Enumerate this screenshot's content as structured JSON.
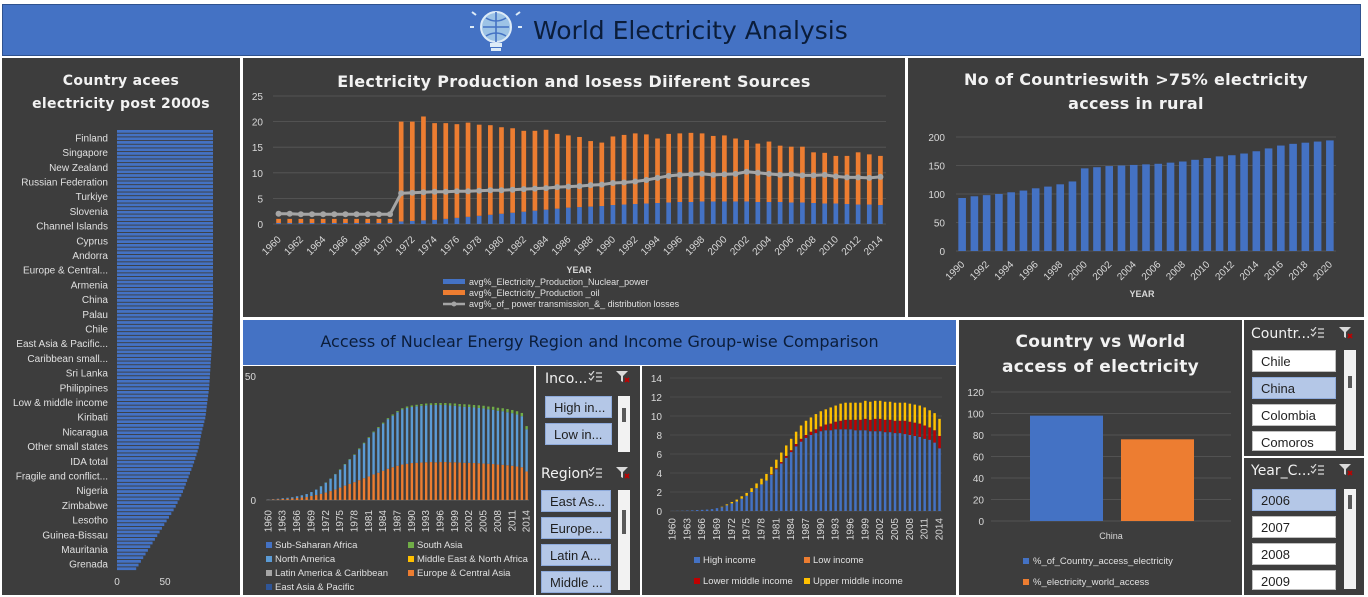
{
  "header": {
    "title": "World Electricity Analysis",
    "logo_icon": "lightbulb-globe-icon"
  },
  "colors": {
    "blue": "#4472c4",
    "orange": "#ed7d31",
    "grey": "#a5a5a5",
    "red": "#c00000",
    "yellow": "#ffc000",
    "green": "#70ad47",
    "panel": "#3d3d3d"
  },
  "panel_country_access": {
    "title_line1": "Country acees",
    "title_line2": "electricity post 2000s"
  },
  "panel_production": {
    "title": "Electricity Production and losess Diiferent Sources",
    "xlabel": "YEAR",
    "legend": [
      "avg%_Electricity_Production_Nuclear_power",
      " avg%_Electricity_Production _oil",
      "avg%_of_ power transmission_&_ distribution losses"
    ]
  },
  "panel_rural": {
    "title_line1": "No of Countrieswith >75% electricity",
    "title_line2": "access in rural",
    "xlabel": "YEAR"
  },
  "panel_nuclear": {
    "title": "Access of Nuclear Energy Region and Income Group-wise Comparison",
    "region_legend": [
      "Sub-Saharan Africa",
      "South Asia",
      "North America",
      "Middle East & North Africa",
      "Latin America & Caribbean",
      "Europe & Central Asia",
      "East Asia & Pacific"
    ],
    "income_legend": [
      "High income",
      "Low income",
      "Lower middle income",
      "Upper middle income"
    ]
  },
  "panel_country_world": {
    "title_line1": "Country vs World",
    "title_line2": "access of electricity",
    "legend": [
      "%_of_Country_access_electricity",
      "%_electricity_world_access"
    ]
  },
  "slicers": {
    "income": {
      "title": "Inco...",
      "items": [
        "High in...",
        "Low in..."
      ]
    },
    "region": {
      "title": "Region",
      "items": [
        "East As...",
        "Europe...",
        "Latin A...",
        "Middle ..."
      ]
    },
    "country": {
      "title": "Countr...",
      "items": [
        "Chile",
        "China",
        "Colombia",
        "Comoros"
      ],
      "selected": "China"
    },
    "year": {
      "title": "Year_C...",
      "items": [
        "2006",
        "2007",
        "2008",
        "2009"
      ],
      "selected": "2006"
    }
  },
  "chart_data": [
    {
      "type": "bar",
      "orientation": "horizontal",
      "title": "Country acees electricity post 2000s",
      "categories": [
        "Finland",
        "Singapore",
        "New Zealand",
        "Russian Federation",
        "Turkiye",
        "Slovenia",
        "Channel Islands",
        "Cyprus",
        "Andorra",
        "Europe & Central...",
        "Armenia",
        "China",
        "Palau",
        "Chile",
        "East Asia & Pacific...",
        "Caribbean small...",
        "Sri Lanka",
        "Philippines",
        "Low & middle income",
        "Kiribati",
        "Nicaragua",
        "Other small states",
        "IDA total",
        "Fragile and conflict...",
        "Nigeria",
        "Zimbabwe",
        "Lesotho",
        "Guinea-Bissau",
        "Mauritania",
        "Grenada"
      ],
      "values": [
        100,
        100,
        100,
        100,
        100,
        100,
        100,
        100,
        100,
        100,
        100,
        100,
        100,
        99,
        99,
        98,
        97,
        96,
        94,
        92,
        88,
        85,
        80,
        74,
        68,
        60,
        50,
        40,
        30,
        20
      ],
      "xticks": [
        "0",
        "50"
      ],
      "xlim": [
        0,
        100
      ]
    },
    {
      "type": "bar",
      "stacked": true,
      "title": "Electricity Production and losess Diiferent Sources",
      "xlabel": "YEAR",
      "xticks": [
        "1960",
        "1962",
        "1964",
        "1966",
        "1968",
        "1970",
        "1972",
        "1974",
        "1976",
        "1978",
        "1980",
        "1982",
        "1984",
        "1986",
        "1988",
        "1990",
        "1992",
        "1994",
        "1996",
        "1998",
        "2000",
        "2002",
        "2004",
        "2006",
        "2008",
        "2010",
        "2012",
        "2014"
      ],
      "ylim": [
        0,
        25
      ],
      "yticks": [
        0,
        5,
        10,
        15,
        20,
        25
      ],
      "x": [
        1960,
        1961,
        1962,
        1963,
        1964,
        1965,
        1966,
        1967,
        1968,
        1969,
        1970,
        1971,
        1972,
        1973,
        1974,
        1975,
        1976,
        1977,
        1978,
        1979,
        1980,
        1981,
        1982,
        1983,
        1984,
        1985,
        1986,
        1987,
        1988,
        1989,
        1990,
        1991,
        1992,
        1993,
        1994,
        1995,
        1996,
        1997,
        1998,
        1999,
        2000,
        2001,
        2002,
        2003,
        2004,
        2005,
        2006,
        2007,
        2008,
        2009,
        2010,
        2011,
        2012,
        2013,
        2014
      ],
      "series": [
        {
          "name": "avg%_Electricity_Production_Nuclear_power",
          "values": [
            0.2,
            0.2,
            0.2,
            0.2,
            0.2,
            0.2,
            0.2,
            0.2,
            0.2,
            0.2,
            0.2,
            0.5,
            0.6,
            0.7,
            0.8,
            1.0,
            1.2,
            1.4,
            1.6,
            1.8,
            2.0,
            2.2,
            2.4,
            2.6,
            2.8,
            3.0,
            3.2,
            3.3,
            3.4,
            3.5,
            3.7,
            3.8,
            3.9,
            4.0,
            4.1,
            4.2,
            4.3,
            4.3,
            4.4,
            4.4,
            4.4,
            4.4,
            4.4,
            4.3,
            4.3,
            4.3,
            4.2,
            4.2,
            4.1,
            4.0,
            4.0,
            3.9,
            3.8,
            3.8,
            3.7
          ]
        },
        {
          "name": " avg%_Electricity_Production _oil",
          "values": [
            0.8,
            0.8,
            0.8,
            0.8,
            0.8,
            0.8,
            0.8,
            0.8,
            0.8,
            0.8,
            0.8,
            19.5,
            19.4,
            20.3,
            18.9,
            18.7,
            18.3,
            18.4,
            17.8,
            17.5,
            16.9,
            16.5,
            15.8,
            15.6,
            15.6,
            14.6,
            14.1,
            13.7,
            12.8,
            12.4,
            13.4,
            13.6,
            13.8,
            13.5,
            12.6,
            13.4,
            13.4,
            13.5,
            13.3,
            12.8,
            12.9,
            12.3,
            12.0,
            11.4,
            11.8,
            11.0,
            10.9,
            10.9,
            9.9,
            9.9,
            9.3,
            9.4,
            10.2,
            9.8,
            9.6
          ]
        },
        {
          "name": "avg%_of_ power transmission_&_ distribution losses",
          "values": [
            2.0,
            2.0,
            1.9,
            1.9,
            1.9,
            1.9,
            1.9,
            1.9,
            1.9,
            1.9,
            1.9,
            6.0,
            6.1,
            6.2,
            6.3,
            6.3,
            6.4,
            6.4,
            6.5,
            6.6,
            6.6,
            6.7,
            6.8,
            6.9,
            7.0,
            7.2,
            7.3,
            7.4,
            7.6,
            7.7,
            8.0,
            8.1,
            8.3,
            8.6,
            9.0,
            9.4,
            9.6,
            9.7,
            9.8,
            9.6,
            9.7,
            9.8,
            10.2,
            10.0,
            9.8,
            9.6,
            9.7,
            9.5,
            9.5,
            9.6,
            9.3,
            9.1,
            9.1,
            9.0,
            9.2
          ]
        }
      ]
    },
    {
      "type": "bar",
      "title": "No of Countrieswith >75% electricity access in rural",
      "xlabel": "YEAR",
      "x": [
        1990,
        1991,
        1992,
        1993,
        1994,
        1995,
        1996,
        1997,
        1998,
        1999,
        2000,
        2001,
        2002,
        2003,
        2004,
        2005,
        2006,
        2007,
        2008,
        2009,
        2010,
        2011,
        2012,
        2013,
        2014,
        2015,
        2016,
        2017,
        2018,
        2019,
        2020
      ],
      "xticks": [
        "1990",
        "1992",
        "1994",
        "1996",
        "1998",
        "2000",
        "2002",
        "2004",
        "2006",
        "2008",
        "2010",
        "2012",
        "2014",
        "2016",
        "2018",
        "2020"
      ],
      "values": [
        93,
        96,
        98,
        100,
        103,
        106,
        110,
        113,
        117,
        122,
        145,
        147,
        149,
        150,
        151,
        152,
        153,
        155,
        157,
        160,
        163,
        166,
        168,
        171,
        175,
        180,
        185,
        188,
        190,
        192,
        194
      ],
      "ylim": [
        0,
        200
      ],
      "yticks": [
        0,
        50,
        100,
        150,
        200
      ]
    },
    {
      "type": "bar",
      "stacked": true,
      "title": "Access of Nuclear Energy Region-wise",
      "xticks": [
        "1960",
        "1963",
        "1966",
        "1969",
        "1972",
        "1975",
        "1978",
        "1981",
        "1984",
        "1987",
        "1990",
        "1993",
        "1996",
        "1999",
        "2002",
        "2005",
        "2008",
        "2011",
        "2014"
      ],
      "yticks": [
        0,
        50
      ],
      "ylim": [
        0,
        50
      ],
      "x": [
        1960,
        1961,
        1962,
        1963,
        1964,
        1965,
        1966,
        1967,
        1968,
        1969,
        1970,
        1971,
        1972,
        1973,
        1974,
        1975,
        1976,
        1977,
        1978,
        1979,
        1980,
        1981,
        1982,
        1983,
        1984,
        1985,
        1986,
        1987,
        1988,
        1989,
        1990,
        1991,
        1992,
        1993,
        1994,
        1995,
        1996,
        1997,
        1998,
        1999,
        2000,
        2001,
        2002,
        2003,
        2004,
        2005,
        2006,
        2007,
        2008,
        2009,
        2010,
        2011,
        2012,
        2013,
        2014
      ],
      "series": [
        {
          "name": "Europe & Central Asia",
          "values": [
            0.1,
            0.2,
            0.3,
            0.4,
            0.5,
            0.6,
            0.8,
            1.0,
            1.2,
            1.6,
            2.0,
            2.5,
            3.0,
            3.6,
            4.2,
            5.0,
            5.8,
            6.5,
            7.2,
            8.0,
            8.8,
            9.5,
            10.3,
            11.0,
            11.8,
            12.6,
            13.2,
            13.8,
            14.3,
            14.6,
            14.9,
            15.0,
            15.1,
            15.2,
            15.3,
            15.2,
            15.3,
            15.3,
            15.2,
            15.2,
            15.1,
            15.0,
            15.0,
            14.9,
            14.8,
            14.7,
            14.6,
            14.5,
            14.3,
            14.2,
            14.0,
            13.8,
            13.5,
            13.2,
            11.5
          ]
        },
        {
          "name": "North America",
          "values": [
            0.1,
            0.1,
            0.2,
            0.3,
            0.4,
            0.5,
            0.7,
            0.9,
            1.2,
            1.6,
            2.2,
            3.0,
            4.0,
            5.0,
            6.2,
            7.2,
            8.5,
            9.8,
            11.0,
            12.5,
            14.0,
            15.5,
            17.0,
            18.0,
            19.0,
            20.0,
            20.8,
            21.6,
            22.2,
            22.5,
            22.6,
            22.8,
            22.9,
            23.0,
            23.0,
            23.1,
            23.0,
            23.0,
            22.9,
            22.8,
            22.7,
            22.6,
            22.5,
            22.4,
            22.3,
            22.2,
            22.0,
            21.9,
            21.7,
            21.6,
            21.4,
            21.2,
            21.0,
            20.6,
            17.0
          ]
        },
        {
          "name": "South Asia",
          "values": [
            0,
            0,
            0,
            0,
            0,
            0,
            0,
            0,
            0,
            0,
            0,
            0.1,
            0.1,
            0.1,
            0.1,
            0.2,
            0.2,
            0.2,
            0.2,
            0.3,
            0.3,
            0.3,
            0.3,
            0.4,
            0.4,
            0.4,
            0.5,
            0.5,
            0.5,
            0.6,
            0.6,
            0.6,
            0.7,
            0.7,
            0.7,
            0.8,
            0.8,
            0.8,
            0.9,
            0.9,
            0.9,
            1.0,
            1.0,
            1.0,
            1.1,
            1.1,
            1.1,
            1.2,
            1.2,
            1.2,
            1.3,
            1.3,
            1.3,
            1.3,
            1.3
          ]
        }
      ]
    },
    {
      "type": "bar",
      "stacked": true,
      "title": "Access of Nuclear Energy Income Group-wise",
      "xticks": [
        "1960",
        "1963",
        "1966",
        "1969",
        "1972",
        "1975",
        "1978",
        "1981",
        "1984",
        "1987",
        "1990",
        "1993",
        "1996",
        "1999",
        "2002",
        "2005",
        "2008",
        "2011",
        "2014"
      ],
      "yticks": [
        0,
        2,
        4,
        6,
        8,
        10,
        12,
        14
      ],
      "ylim": [
        0,
        14
      ],
      "x": [
        1960,
        1961,
        1962,
        1963,
        1964,
        1965,
        1966,
        1967,
        1968,
        1969,
        1970,
        1971,
        1972,
        1973,
        1974,
        1975,
        1976,
        1977,
        1978,
        1979,
        1980,
        1981,
        1982,
        1983,
        1984,
        1985,
        1986,
        1987,
        1988,
        1989,
        1990,
        1991,
        1992,
        1993,
        1994,
        1995,
        1996,
        1997,
        1998,
        1999,
        2000,
        2001,
        2002,
        2003,
        2004,
        2005,
        2006,
        2007,
        2008,
        2009,
        2010,
        2011,
        2012,
        2013,
        2014
      ],
      "series": [
        {
          "name": "High income",
          "values": [
            0.01,
            0.02,
            0.03,
            0.05,
            0.07,
            0.1,
            0.12,
            0.15,
            0.2,
            0.3,
            0.4,
            0.6,
            0.8,
            1.0,
            1.3,
            1.6,
            2.0,
            2.4,
            2.8,
            3.2,
            3.8,
            4.4,
            5.0,
            5.6,
            6.2,
            6.8,
            7.3,
            7.7,
            8.0,
            8.2,
            8.4,
            8.5,
            8.5,
            8.6,
            8.6,
            8.6,
            8.6,
            8.5,
            8.5,
            8.5,
            8.4,
            8.4,
            8.4,
            8.3,
            8.3,
            8.2,
            8.2,
            8.1,
            8.0,
            7.9,
            7.8,
            7.6,
            7.5,
            7.2,
            6.6
          ]
        },
        {
          "name": "Lower middle income",
          "values": [
            0,
            0,
            0,
            0,
            0,
            0,
            0,
            0,
            0,
            0,
            0,
            0,
            0,
            0,
            0,
            0,
            0,
            0,
            0,
            0,
            0.05,
            0.1,
            0.15,
            0.2,
            0.2,
            0.25,
            0.3,
            0.3,
            0.35,
            0.4,
            0.5,
            0.6,
            0.7,
            0.8,
            0.9,
            1.0,
            1.0,
            1.1,
            1.1,
            1.2,
            1.2,
            1.3,
            1.3,
            1.3,
            1.3,
            1.3,
            1.3,
            1.4,
            1.4,
            1.4,
            1.4,
            1.4,
            1.3,
            1.3,
            1.3
          ]
        },
        {
          "name": "Upper middle income",
          "values": [
            0,
            0,
            0,
            0,
            0,
            0,
            0,
            0,
            0,
            0,
            0.05,
            0.1,
            0.15,
            0.2,
            0.25,
            0.3,
            0.4,
            0.5,
            0.6,
            0.7,
            0.8,
            0.9,
            1.0,
            1.1,
            1.2,
            1.3,
            1.4,
            1.5,
            1.5,
            1.6,
            1.6,
            1.6,
            1.7,
            1.7,
            1.8,
            1.8,
            1.8,
            1.8,
            1.8,
            1.9,
            1.9,
            1.9,
            1.9,
            1.9,
            1.9,
            1.9,
            1.9,
            1.9,
            1.9,
            1.9,
            1.9,
            1.9,
            1.8,
            1.8,
            1.8
          ]
        }
      ]
    },
    {
      "type": "bar",
      "title": "Country vs World access of electricity",
      "categories": [
        "China"
      ],
      "series": [
        {
          "name": "%_of_Country_access_electricity",
          "values": [
            98
          ]
        },
        {
          "name": "%_electricity_world_access",
          "values": [
            76
          ]
        }
      ],
      "ylim": [
        0,
        120
      ],
      "yticks": [
        0,
        20,
        40,
        60,
        80,
        100,
        120
      ]
    }
  ]
}
